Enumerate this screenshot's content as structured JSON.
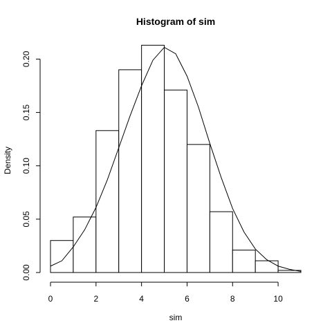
{
  "chart_data": {
    "type": "bar",
    "title": "Histogram of sim",
    "xlabel": "sim",
    "ylabel": "Density",
    "xlim": [
      0,
      11
    ],
    "ylim": [
      0,
      0.21
    ],
    "x_ticks": [
      0,
      2,
      4,
      6,
      8,
      10
    ],
    "y_ticks": [
      0.0,
      0.05,
      0.1,
      0.15,
      0.2
    ],
    "x_tick_labels": [
      "0",
      "2",
      "4",
      "6",
      "8",
      "10"
    ],
    "y_tick_labels": [
      "0.00",
      "0.05",
      "0.10",
      "0.15",
      "0.20"
    ],
    "bins": [
      {
        "x0": 0,
        "x1": 1,
        "density": 0.03
      },
      {
        "x0": 1,
        "x1": 2,
        "density": 0.052
      },
      {
        "x0": 2,
        "x1": 3,
        "density": 0.133
      },
      {
        "x0": 3,
        "x1": 4,
        "density": 0.19
      },
      {
        "x0": 4,
        "x1": 5,
        "density": 0.213
      },
      {
        "x0": 5,
        "x1": 6,
        "density": 0.171
      },
      {
        "x0": 6,
        "x1": 7,
        "density": 0.12
      },
      {
        "x0": 7,
        "x1": 8,
        "density": 0.057
      },
      {
        "x0": 8,
        "x1": 9,
        "density": 0.021
      },
      {
        "x0": 9,
        "x1": 10,
        "density": 0.011
      },
      {
        "x0": 10,
        "x1": 11,
        "density": 0.002
      }
    ],
    "overlay_curve": {
      "type": "line",
      "x": [
        0,
        0.5,
        1,
        1.5,
        2,
        2.5,
        3,
        3.5,
        4,
        4.5,
        5,
        5.5,
        6,
        6.5,
        7,
        7.5,
        8,
        8.5,
        9,
        9.5,
        10,
        10.5,
        11
      ],
      "y": [
        0.006,
        0.011,
        0.024,
        0.04,
        0.061,
        0.087,
        0.117,
        0.147,
        0.175,
        0.199,
        0.211,
        0.205,
        0.184,
        0.155,
        0.121,
        0.089,
        0.06,
        0.038,
        0.022,
        0.012,
        0.006,
        0.003,
        0.001
      ]
    }
  }
}
